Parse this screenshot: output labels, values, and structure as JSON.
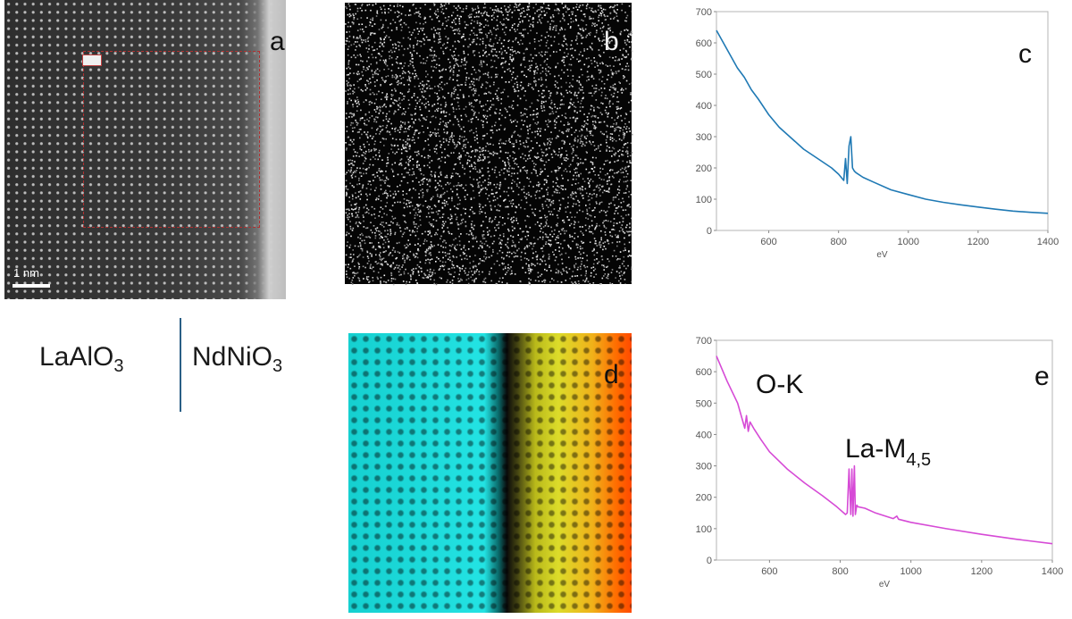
{
  "panels": {
    "a": {
      "letter": "a",
      "scale_bar_label": "1 nm"
    },
    "b": {
      "letter": "b"
    },
    "c": {
      "letter": "c"
    },
    "d": {
      "letter": "d"
    },
    "e": {
      "letter": "e"
    }
  },
  "materials": {
    "left": {
      "base": "LaAlO",
      "sub": "3"
    },
    "right": {
      "base": "NdNiO",
      "sub": "3"
    }
  },
  "colors": {
    "spectrum_c": "#1f79b4",
    "spectrum_e": "#d64ad6",
    "interface_line": "#2a5f86"
  },
  "chart_data": [
    {
      "id": "c",
      "type": "line",
      "xlabel": "eV",
      "xlim": [
        450,
        1400
      ],
      "ylim": [
        0,
        700
      ],
      "xticks": [
        600,
        800,
        1000,
        1200,
        1400
      ],
      "yticks": [
        0,
        100,
        200,
        300,
        400,
        500,
        600,
        700
      ],
      "series": [
        {
          "x": [
            450,
            470,
            490,
            510,
            530,
            550,
            570,
            600,
            630,
            660,
            700,
            740,
            780,
            800,
            815,
            820,
            825,
            830,
            835,
            840,
            845,
            850,
            870,
            900,
            950,
            1000,
            1050,
            1100,
            1150,
            1200,
            1250,
            1300,
            1350,
            1400
          ],
          "y": [
            640,
            600,
            560,
            520,
            490,
            450,
            420,
            370,
            330,
            300,
            260,
            230,
            200,
            180,
            160,
            230,
            150,
            270,
            300,
            200,
            190,
            185,
            170,
            155,
            130,
            115,
            100,
            90,
            82,
            75,
            68,
            62,
            58,
            55
          ]
        }
      ]
    },
    {
      "id": "e",
      "type": "line",
      "xlabel": "eV",
      "xlim": [
        450,
        1400
      ],
      "ylim": [
        0,
        700
      ],
      "xticks": [
        600,
        800,
        1000,
        1200,
        1400
      ],
      "yticks": [
        0,
        100,
        200,
        300,
        400,
        500,
        600,
        700
      ],
      "annotations": [
        {
          "text": "O-K"
        },
        {
          "base": "La-M",
          "sub": "4,5"
        }
      ],
      "series": [
        {
          "x": [
            450,
            480,
            510,
            525,
            530,
            535,
            540,
            545,
            555,
            575,
            600,
            650,
            700,
            750,
            790,
            815,
            820,
            825,
            830,
            833,
            836,
            840,
            843,
            847,
            850,
            870,
            900,
            950,
            960,
            965,
            1000,
            1100,
            1200,
            1300,
            1400
          ],
          "y": [
            650,
            570,
            500,
            440,
            420,
            460,
            410,
            440,
            420,
            385,
            345,
            290,
            245,
            205,
            170,
            145,
            150,
            290,
            145,
            290,
            140,
            300,
            145,
            175,
            170,
            165,
            150,
            132,
            140,
            130,
            120,
            100,
            82,
            66,
            52
          ]
        }
      ]
    }
  ]
}
